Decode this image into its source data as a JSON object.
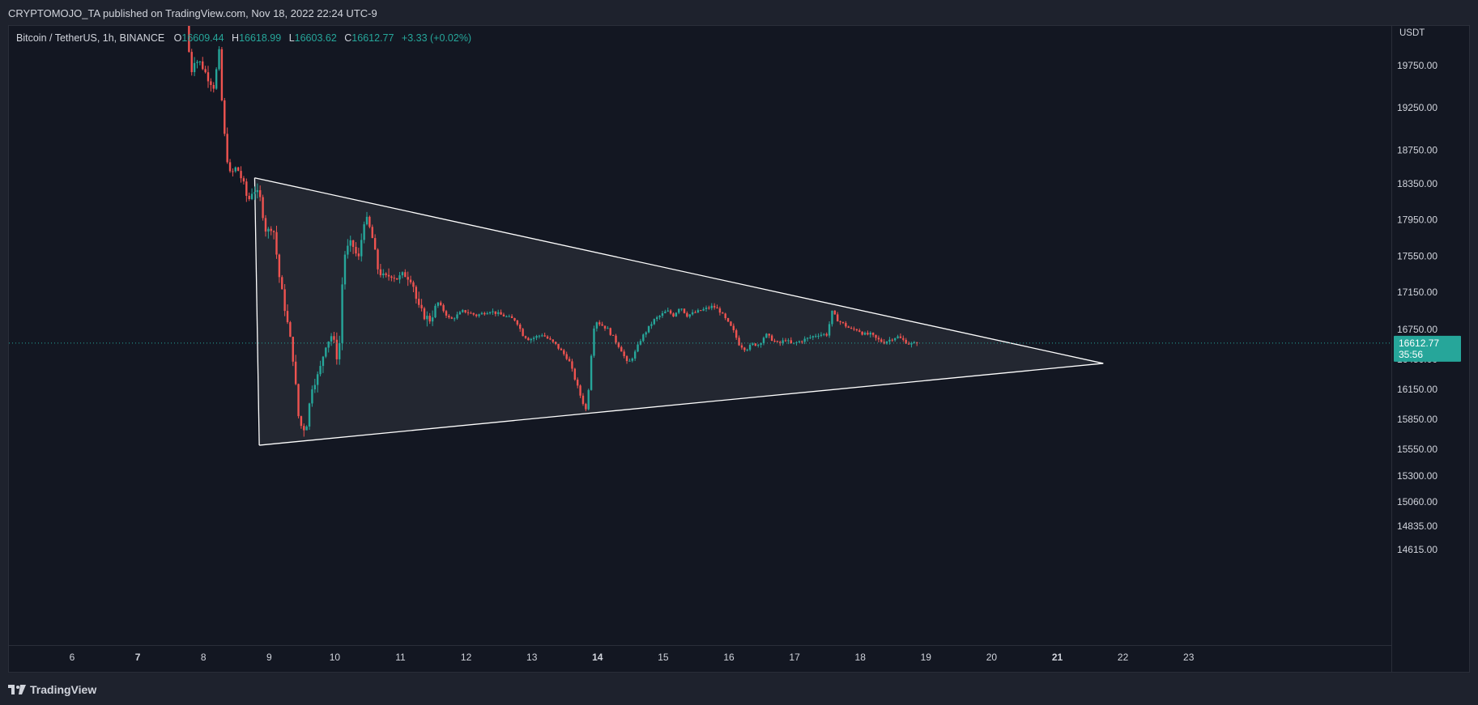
{
  "publish_line": "CRYPTOMOJO_TA published on TradingView.com, Nov 18, 2022 22:24 UTC-9",
  "legend": {
    "symbol": "Bitcoin / TetherUS, 1h, BINANCE",
    "o_label": "O",
    "o_value": "16609.44",
    "h_label": "H",
    "h_value": "16618.99",
    "l_label": "L",
    "l_value": "16603.62",
    "c_label": "C",
    "c_value": "16612.77",
    "change": "+3.33 (+0.02%)"
  },
  "price_scale": {
    "currency": "USDT",
    "ticks": [
      "19750.00",
      "19250.00",
      "18750.00",
      "18350.00",
      "17950.00",
      "17550.00",
      "17150.00",
      "16750.00",
      "16450.00",
      "16150.00",
      "15850.00",
      "15550.00",
      "15300.00",
      "15060.00",
      "14835.00",
      "14615.00"
    ],
    "last_price": "16612.77",
    "countdown": "35:56"
  },
  "brand": "TradingView",
  "colors": {
    "up": "#26a69a",
    "down": "#ef5350",
    "background": "#131722",
    "triangle": "#ffffff"
  },
  "chart_data": {
    "type": "candlestick",
    "symbol": "BTCUSDT",
    "interval": "1h",
    "x_ticks": [
      {
        "label": "6",
        "day": 6,
        "bold": false
      },
      {
        "label": "7",
        "day": 7,
        "bold": true
      },
      {
        "label": "8",
        "day": 8,
        "bold": false
      },
      {
        "label": "9",
        "day": 9,
        "bold": false
      },
      {
        "label": "10",
        "day": 10,
        "bold": false
      },
      {
        "label": "11",
        "day": 11,
        "bold": false
      },
      {
        "label": "12",
        "day": 12,
        "bold": false
      },
      {
        "label": "13",
        "day": 13,
        "bold": false
      },
      {
        "label": "14",
        "day": 14,
        "bold": true
      },
      {
        "label": "15",
        "day": 15,
        "bold": false
      },
      {
        "label": "16",
        "day": 16,
        "bold": false
      },
      {
        "label": "17",
        "day": 17,
        "bold": false
      },
      {
        "label": "18",
        "day": 18,
        "bold": false
      },
      {
        "label": "19",
        "day": 19,
        "bold": false
      },
      {
        "label": "20",
        "day": 20,
        "bold": false
      },
      {
        "label": "21",
        "day": 21,
        "bold": true
      },
      {
        "label": "22",
        "day": 22,
        "bold": false
      },
      {
        "label": "23",
        "day": 23,
        "bold": false
      }
    ],
    "price_path": [
      [
        7.78,
        20300
      ],
      [
        7.85,
        19650
      ],
      [
        7.9,
        19820
      ],
      [
        8.0,
        19780
      ],
      [
        8.1,
        19620
      ],
      [
        8.2,
        19500
      ],
      [
        8.28,
        19900
      ],
      [
        8.32,
        19350
      ],
      [
        8.38,
        18750
      ],
      [
        8.45,
        18450
      ],
      [
        8.55,
        18550
      ],
      [
        8.65,
        18350
      ],
      [
        8.72,
        18150
      ],
      [
        8.8,
        18300
      ],
      [
        8.9,
        18200
      ],
      [
        9.0,
        17800
      ],
      [
        9.1,
        17900
      ],
      [
        9.2,
        17300
      ],
      [
        9.3,
        16900
      ],
      [
        9.4,
        16500
      ],
      [
        9.5,
        15800
      ],
      [
        9.6,
        15750
      ],
      [
        9.7,
        16200
      ],
      [
        9.8,
        16300
      ],
      [
        9.9,
        16600
      ],
      [
        10.0,
        16700
      ],
      [
        10.1,
        16400
      ],
      [
        10.15,
        17200
      ],
      [
        10.2,
        17600
      ],
      [
        10.3,
        17700
      ],
      [
        10.4,
        17500
      ],
      [
        10.5,
        18000
      ],
      [
        10.6,
        17800
      ],
      [
        10.7,
        17400
      ],
      [
        10.8,
        17300
      ],
      [
        10.9,
        17350
      ],
      [
        11.0,
        17300
      ],
      [
        11.1,
        17350
      ],
      [
        11.2,
        17300
      ],
      [
        11.25,
        17200
      ],
      [
        11.3,
        17000
      ],
      [
        11.4,
        16900
      ],
      [
        11.5,
        16850
      ],
      [
        11.6,
        17050
      ],
      [
        11.7,
        16950
      ],
      [
        11.8,
        16850
      ],
      [
        11.9,
        16900
      ],
      [
        12.0,
        16950
      ],
      [
        12.2,
        16900
      ],
      [
        12.4,
        16950
      ],
      [
        12.6,
        16900
      ],
      [
        12.8,
        16850
      ],
      [
        12.9,
        16700
      ],
      [
        13.0,
        16650
      ],
      [
        13.2,
        16700
      ],
      [
        13.4,
        16600
      ],
      [
        13.6,
        16450
      ],
      [
        13.7,
        16250
      ],
      [
        13.8,
        16050
      ],
      [
        13.88,
        15920
      ],
      [
        13.92,
        16300
      ],
      [
        13.96,
        16600
      ],
      [
        14.0,
        16850
      ],
      [
        14.2,
        16750
      ],
      [
        14.3,
        16650
      ],
      [
        14.4,
        16550
      ],
      [
        14.5,
        16400
      ],
      [
        14.6,
        16500
      ],
      [
        14.7,
        16650
      ],
      [
        14.8,
        16750
      ],
      [
        14.9,
        16850
      ],
      [
        15.0,
        16900
      ],
      [
        15.1,
        16950
      ],
      [
        15.2,
        16900
      ],
      [
        15.3,
        17000
      ],
      [
        15.4,
        16900
      ],
      [
        15.6,
        16950
      ],
      [
        15.8,
        17000
      ],
      [
        15.9,
        16950
      ],
      [
        16.0,
        16850
      ],
      [
        16.1,
        16750
      ],
      [
        16.2,
        16600
      ],
      [
        16.3,
        16550
      ],
      [
        16.4,
        16600
      ],
      [
        16.5,
        16600
      ],
      [
        16.6,
        16700
      ],
      [
        16.7,
        16650
      ],
      [
        16.8,
        16600
      ],
      [
        16.9,
        16650
      ],
      [
        17.0,
        16600
      ],
      [
        17.2,
        16650
      ],
      [
        17.4,
        16700
      ],
      [
        17.55,
        16700
      ],
      [
        17.6,
        16950
      ],
      [
        17.7,
        16850
      ],
      [
        17.8,
        16800
      ],
      [
        17.9,
        16750
      ],
      [
        18.0,
        16750
      ],
      [
        18.1,
        16700
      ],
      [
        18.2,
        16700
      ],
      [
        18.3,
        16650
      ],
      [
        18.4,
        16620
      ],
      [
        18.5,
        16650
      ],
      [
        18.6,
        16680
      ],
      [
        18.7,
        16640
      ],
      [
        18.8,
        16600
      ],
      [
        18.9,
        16612.77
      ]
    ],
    "last_price": 16612.77,
    "triangle": {
      "upper_line": [
        [
          8.78,
          18420
        ],
        [
          21.7,
          16410
        ]
      ],
      "lower_line": [
        [
          8.85,
          15590
        ],
        [
          21.7,
          16410
        ]
      ],
      "left_edge": [
        [
          8.78,
          18420
        ],
        [
          8.85,
          15590
        ]
      ],
      "filled": true
    }
  }
}
